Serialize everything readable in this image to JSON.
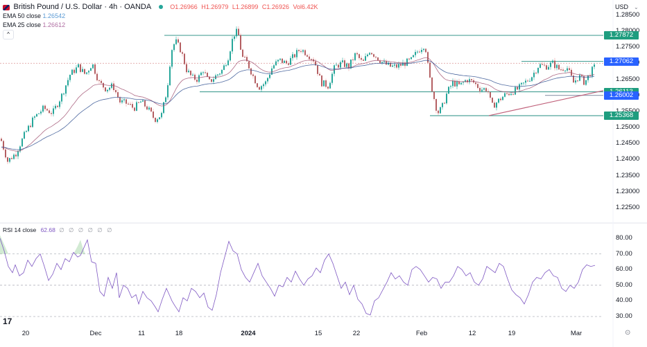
{
  "header": {
    "symbol_title": "British Pound / U.S. Dollar · 4h · OANDA",
    "status_color": "#26a69a",
    "ohlc": {
      "open": "O1.26966",
      "high": "H1.26979",
      "low": "L1.26899",
      "close": "C1.26926",
      "volume": "Vol6.42K"
    },
    "ema50": {
      "label": "EMA 50 close",
      "value": "1.26542"
    },
    "ema25": {
      "label": "EMA 25 close",
      "value": "1.26612"
    },
    "collapse_glyph": "^"
  },
  "price_axis": {
    "currency": "USD",
    "currency_chevron": "⌄",
    "ticks": [
      "1.28500",
      "1.28000",
      "1.27500",
      "1.27000",
      "1.26500",
      "1.26000",
      "1.25500",
      "1.25000",
      "1.24500",
      "1.24000",
      "1.23500",
      "1.23000",
      "1.22500"
    ],
    "tags": [
      {
        "value": "1.27872",
        "color": "#1e9d7f"
      },
      {
        "value": "1.27062",
        "color": "#2962ff"
      },
      {
        "value": "1.26113",
        "color": "#1e9d7f"
      },
      {
        "value": "1.26002",
        "color": "#2962ff"
      },
      {
        "value": "1.25368",
        "color": "#1e9d7f"
      }
    ]
  },
  "rsi": {
    "label": "RSI 14 close",
    "value": "62.68",
    "placeholders": "∅ ∅ ∅ ∅ ∅ ∅",
    "ticks": [
      "80.00",
      "70.00",
      "60.00",
      "50.00",
      "40.00",
      "30.00"
    ]
  },
  "time_axis": {
    "ticks": [
      {
        "label": "20",
        "x": 37,
        "bold": false
      },
      {
        "label": "Dec",
        "x": 138,
        "bold": false
      },
      {
        "label": "11",
        "x": 204,
        "bold": false
      },
      {
        "label": "18",
        "x": 258,
        "bold": false
      },
      {
        "label": "2024",
        "x": 358,
        "bold": true
      },
      {
        "label": "15",
        "x": 459,
        "bold": false
      },
      {
        "label": "22",
        "x": 514,
        "bold": false
      },
      {
        "label": "Feb",
        "x": 608,
        "bold": false
      },
      {
        "label": "12",
        "x": 681,
        "bold": false
      },
      {
        "label": "19",
        "x": 738,
        "bold": false
      },
      {
        "label": "Mar",
        "x": 831,
        "bold": false
      }
    ]
  },
  "branding": {
    "logo": "17",
    "settings_icon": "⊙"
  },
  "chart_data": [
    {
      "type": "candlestick",
      "title": "British Pound / U.S. Dollar · 4h · OANDA",
      "xlabel": "",
      "ylabel": "USD",
      "ylim": [
        1.222,
        1.2875
      ],
      "x_ticks": [
        "20",
        "Dec",
        "11",
        "18",
        "2024",
        "15",
        "22",
        "Feb",
        "12",
        "19",
        "Mar"
      ],
      "close_path": {
        "x": [
          0,
          10,
          22,
          35,
          48,
          62,
          75,
          88,
          100,
          112,
          122,
          132,
          142,
          152,
          162,
          172,
          182,
          192,
          202,
          212,
          222,
          232,
          240,
          246,
          252,
          260,
          268,
          276,
          284,
          292,
          300,
          310,
          320,
          328,
          336,
          342,
          348,
          356,
          364,
          372,
          382,
          392,
          402,
          412,
          422,
          432,
          442,
          452,
          462,
          472,
          482,
          492,
          502,
          512,
          522,
          532,
          542,
          552,
          562,
          572,
          582,
          592,
          602,
          612,
          618,
          624,
          630,
          636,
          644,
          652,
          662,
          672,
          682,
          692,
          702,
          708,
          716,
          726,
          736,
          746,
          756,
          766,
          776,
          786,
          796,
          806,
          816,
          826,
          834,
          842,
          850,
          858
        ],
        "close": [
          1.2465,
          1.2395,
          1.242,
          1.248,
          1.253,
          1.256,
          1.2545,
          1.26,
          1.2665,
          1.269,
          1.2665,
          1.27,
          1.264,
          1.262,
          1.263,
          1.258,
          1.2575,
          1.256,
          1.258,
          1.256,
          1.2525,
          1.254,
          1.262,
          1.274,
          1.277,
          1.274,
          1.268,
          1.2655,
          1.265,
          1.268,
          1.264,
          1.266,
          1.268,
          1.272,
          1.279,
          1.28,
          1.272,
          1.27,
          1.266,
          1.2625,
          1.264,
          1.269,
          1.271,
          1.27,
          1.272,
          1.2745,
          1.273,
          1.271,
          1.264,
          1.263,
          1.269,
          1.27,
          1.269,
          1.273,
          1.27,
          1.274,
          1.272,
          1.27,
          1.269,
          1.269,
          1.27,
          1.271,
          1.274,
          1.276,
          1.266,
          1.26,
          1.2545,
          1.256,
          1.261,
          1.264,
          1.263,
          1.265,
          1.264,
          1.262,
          1.262,
          1.2565,
          1.258,
          1.26,
          1.261,
          1.262,
          1.264,
          1.266,
          1.2695,
          1.269,
          1.27,
          1.268,
          1.269,
          1.264,
          1.266,
          1.264,
          1.267,
          1.2693
        ]
      },
      "series": [
        {
          "name": "EMA 50 close",
          "last": 1.26542,
          "color": "#2f4f8f"
        },
        {
          "name": "EMA 25 close",
          "last": 1.26612,
          "color": "#a05070"
        }
      ],
      "horizontal_lines": [
        {
          "value": 1.27872,
          "x_start": 237,
          "color": "#4fa39a"
        },
        {
          "value": 1.27062,
          "x_start": 752,
          "color": "#4fa39a"
        },
        {
          "value": 1.27,
          "x_start": 0,
          "color": "#e8b8b8",
          "dashed": true
        },
        {
          "value": 1.26113,
          "x_start": 288,
          "color": "#4fa39a"
        },
        {
          "value": 1.26002,
          "x_start": 786,
          "color": "#9aa3b5"
        },
        {
          "value": 1.25368,
          "x_start": 620,
          "color": "#4fa39a"
        }
      ],
      "trendline": {
        "x1": 705,
        "y1": 1.2537,
        "x2": 870,
        "y2": 1.2615,
        "color": "#c0607a"
      }
    },
    {
      "type": "line",
      "title": "RSI 14 close",
      "ylim": [
        25,
        85
      ],
      "levels": [
        70,
        50,
        30
      ],
      "last": 62.68,
      "x": [
        0,
        6,
        12,
        18,
        22,
        28,
        34,
        40,
        46,
        52,
        58,
        64,
        70,
        76,
        82,
        88,
        94,
        100,
        106,
        112,
        116,
        120,
        126,
        132,
        138,
        144,
        150,
        156,
        162,
        168,
        172,
        178,
        184,
        190,
        196,
        200,
        206,
        212,
        218,
        224,
        228,
        234,
        240,
        244,
        248,
        252,
        258,
        264,
        270,
        276,
        282,
        288,
        294,
        300,
        306,
        312,
        318,
        324,
        330,
        336,
        342,
        348,
        354,
        360,
        366,
        372,
        378,
        384,
        390,
        396,
        402,
        408,
        414,
        420,
        426,
        432,
        438,
        444,
        450,
        456,
        462,
        468,
        474,
        480,
        486,
        492,
        498,
        504,
        510,
        516,
        522,
        528,
        534,
        540,
        546,
        552,
        558,
        564,
        570,
        576,
        582,
        588,
        594,
        600,
        606,
        612,
        618,
        624,
        630,
        636,
        642,
        648,
        654,
        660,
        666,
        672,
        678,
        684,
        690,
        696,
        702,
        708,
        714,
        720,
        726,
        732,
        738,
        744,
        750,
        756,
        762,
        768,
        774,
        780,
        786,
        792,
        798,
        804,
        810,
        816,
        822,
        828,
        834,
        840,
        846,
        852,
        858
      ],
      "rsi": [
        80,
        72,
        62,
        58,
        63,
        56,
        58,
        66,
        62,
        67,
        70,
        62,
        53,
        57,
        64,
        60,
        67,
        65,
        71,
        68,
        69,
        73,
        79,
        65,
        64,
        46,
        43,
        55,
        48,
        58,
        42,
        50,
        48,
        42,
        44,
        38,
        46,
        42,
        40,
        36,
        33,
        41,
        48,
        44,
        40,
        37,
        33,
        42,
        40,
        48,
        46,
        42,
        45,
        36,
        34,
        44,
        58,
        68,
        78,
        72,
        70,
        60,
        55,
        52,
        58,
        64,
        56,
        52,
        48,
        43,
        50,
        49,
        55,
        52,
        59,
        54,
        50,
        54,
        56,
        61,
        58,
        66,
        70,
        64,
        56,
        48,
        52,
        44,
        50,
        41,
        38,
        32,
        31,
        40,
        42,
        47,
        52,
        58,
        54,
        56,
        52,
        50,
        60,
        62,
        60,
        56,
        52,
        55,
        54,
        48,
        52,
        52,
        56,
        62,
        60,
        56,
        58,
        52,
        50,
        54,
        62,
        60,
        58,
        64,
        62,
        54,
        47,
        44,
        42,
        38,
        44,
        52,
        55,
        54,
        58,
        60,
        56,
        55,
        48,
        46,
        50,
        48,
        52,
        60,
        63,
        62,
        62.68
      ]
    }
  ]
}
